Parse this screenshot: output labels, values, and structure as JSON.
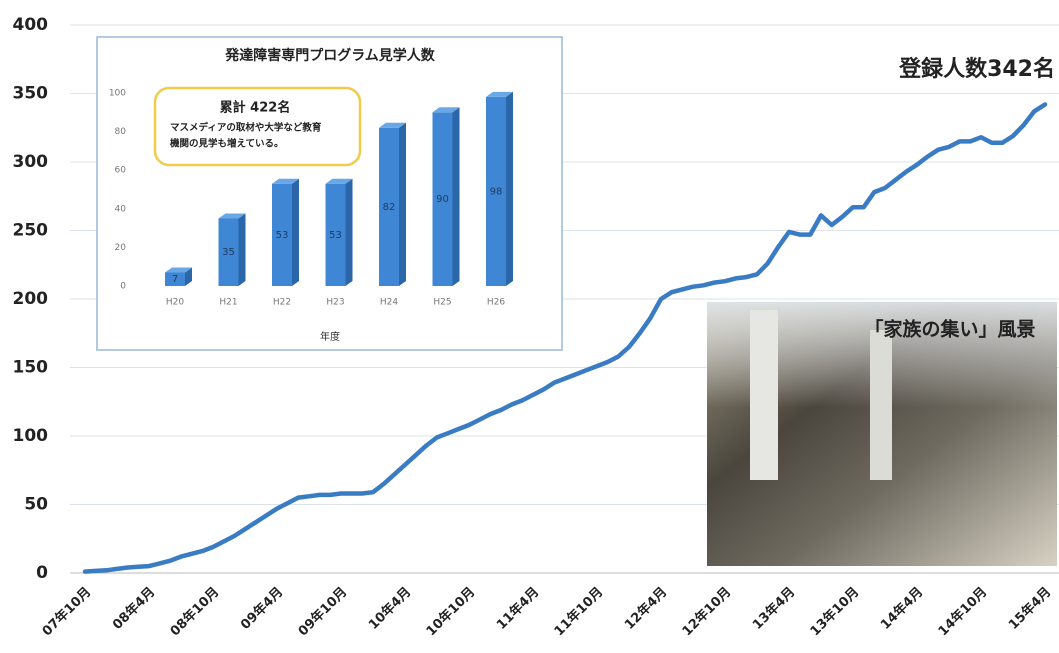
{
  "chart_data": [
    {
      "type": "line",
      "annotation": "登録人数342名",
      "categories": [
        "07年10月",
        null,
        null,
        null,
        null,
        null,
        "08年4月",
        null,
        null,
        null,
        null,
        null,
        "08年10月",
        null,
        null,
        null,
        null,
        null,
        "09年4月",
        null,
        null,
        null,
        null,
        null,
        "09年10月",
        null,
        null,
        null,
        null,
        null,
        "10年4月",
        null,
        null,
        null,
        null,
        null,
        "10年10月",
        null,
        null,
        null,
        null,
        null,
        "11年4月",
        null,
        null,
        null,
        null,
        null,
        "11年10月",
        null,
        null,
        null,
        null,
        null,
        "12年4月",
        null,
        null,
        null,
        null,
        null,
        "12年10月",
        null,
        null,
        null,
        null,
        null,
        "13年4月",
        null,
        null,
        null,
        null,
        null,
        "13年10月",
        null,
        null,
        null,
        null,
        null,
        "14年4月",
        null,
        null,
        null,
        null,
        null,
        "14年10月",
        null,
        null,
        null,
        null,
        null,
        "15年4月"
      ],
      "series": [
        {
          "color": "#3a7cc4",
          "values": [
            1,
            1.5,
            2,
            3,
            4,
            4.5,
            5,
            7,
            9,
            12,
            14,
            16,
            19,
            23,
            27,
            32,
            37,
            42,
            47,
            51,
            55,
            56,
            57,
            57,
            58,
            58,
            58,
            59,
            65,
            72,
            79,
            86,
            93,
            99,
            102,
            105,
            108,
            112,
            116,
            119,
            123,
            126,
            130,
            134,
            139,
            142,
            145,
            148,
            151,
            154,
            158,
            165,
            175,
            186,
            200,
            205,
            207,
            209,
            210,
            212,
            213,
            215,
            216,
            218,
            226,
            238,
            249,
            247,
            247,
            261,
            254,
            260,
            267,
            267,
            278,
            281,
            287,
            293,
            298,
            304,
            309,
            311,
            315,
            315,
            318,
            314,
            314,
            319,
            327,
            337,
            342
          ]
        }
      ],
      "ylim": [
        0,
        400
      ],
      "yticks": [
        0,
        50,
        100,
        150,
        200,
        250,
        300,
        350,
        400
      ],
      "grid": true
    },
    {
      "type": "bar3d",
      "title": "発達障害専門プログラム見学人数",
      "x_label": "年度",
      "annotation": {
        "title": "累計 422名",
        "lines": [
          "マスメディアの取材や大学など教育",
          "機関の見学も増えている。"
        ]
      },
      "categories": [
        "H20",
        "H21",
        "H22",
        "H23",
        "H24",
        "H25",
        "H26"
      ],
      "values": [
        7,
        35,
        53,
        53,
        82,
        90,
        98
      ],
      "color": "#3f87d4",
      "ylim": [
        0,
        100
      ],
      "yticks": [
        0,
        20,
        40,
        60,
        80,
        100
      ]
    }
  ],
  "photo": {
    "caption": "「家族の集い」風景"
  }
}
